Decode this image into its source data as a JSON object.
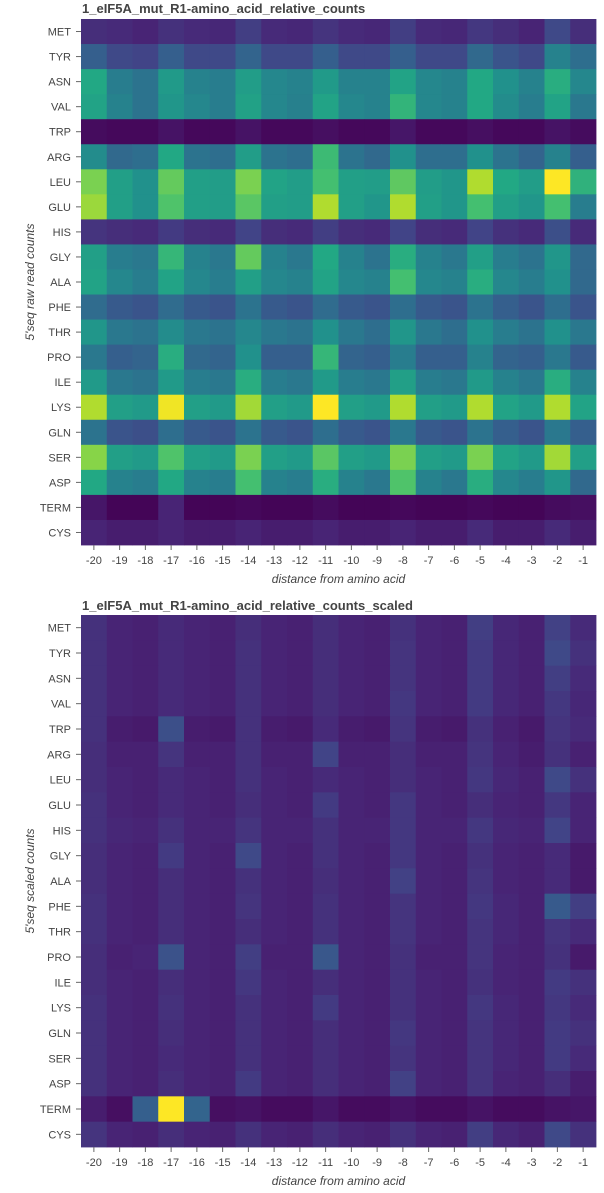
{
  "chart_data": [
    {
      "type": "heatmap",
      "title": "1_eIF5A_mut_R1-amino_acid_relative_counts",
      "xlabel": "distance from amino acid",
      "ylabel": "5'seq raw read counts",
      "x": [
        "-20",
        "-19",
        "-18",
        "-17",
        "-16",
        "-15",
        "-14",
        "-13",
        "-12",
        "-11",
        "-10",
        "-9",
        "-8",
        "-7",
        "-6",
        "-5",
        "-4",
        "-3",
        "-2",
        "-1"
      ],
      "y": [
        "MET",
        "TYR",
        "ASN",
        "VAL",
        "TRP",
        "ARG",
        "LEU",
        "GLU",
        "HIS",
        "GLY",
        "ALA",
        "PHE",
        "THR",
        "PRO",
        "ILE",
        "LYS",
        "GLN",
        "SER",
        "ASP",
        "TERM",
        "CYS"
      ],
      "colorscale": "viridis",
      "vrange": [
        0,
        1
      ],
      "values": [
        [
          0.13,
          0.12,
          0.1,
          0.14,
          0.12,
          0.11,
          0.18,
          0.12,
          0.11,
          0.15,
          0.12,
          0.11,
          0.18,
          0.12,
          0.11,
          0.16,
          0.13,
          0.1,
          0.22,
          0.13
        ],
        [
          0.3,
          0.22,
          0.2,
          0.3,
          0.22,
          0.22,
          0.32,
          0.22,
          0.22,
          0.3,
          0.22,
          0.22,
          0.3,
          0.22,
          0.22,
          0.34,
          0.26,
          0.22,
          0.44,
          0.36
        ],
        [
          0.6,
          0.42,
          0.38,
          0.54,
          0.44,
          0.42,
          0.55,
          0.46,
          0.44,
          0.54,
          0.44,
          0.44,
          0.58,
          0.46,
          0.44,
          0.6,
          0.5,
          0.44,
          0.62,
          0.46
        ],
        [
          0.58,
          0.44,
          0.38,
          0.52,
          0.46,
          0.42,
          0.57,
          0.46,
          0.43,
          0.58,
          0.46,
          0.44,
          0.65,
          0.46,
          0.44,
          0.6,
          0.48,
          0.42,
          0.58,
          0.4
        ],
        [
          0.03,
          0.02,
          0.02,
          0.05,
          0.02,
          0.02,
          0.05,
          0.02,
          0.02,
          0.04,
          0.02,
          0.02,
          0.06,
          0.02,
          0.02,
          0.04,
          0.02,
          0.02,
          0.05,
          0.03
        ],
        [
          0.48,
          0.34,
          0.36,
          0.6,
          0.38,
          0.36,
          0.55,
          0.38,
          0.36,
          0.68,
          0.38,
          0.34,
          0.5,
          0.36,
          0.36,
          0.5,
          0.38,
          0.32,
          0.44,
          0.3
        ],
        [
          0.8,
          0.56,
          0.5,
          0.76,
          0.56,
          0.55,
          0.8,
          0.58,
          0.55,
          0.7,
          0.56,
          0.55,
          0.75,
          0.55,
          0.52,
          0.88,
          0.6,
          0.55,
          1.0,
          0.64
        ],
        [
          0.85,
          0.56,
          0.5,
          0.72,
          0.56,
          0.55,
          0.74,
          0.56,
          0.55,
          0.88,
          0.56,
          0.52,
          0.88,
          0.56,
          0.52,
          0.7,
          0.56,
          0.52,
          0.7,
          0.42
        ],
        [
          0.15,
          0.13,
          0.12,
          0.17,
          0.13,
          0.12,
          0.2,
          0.13,
          0.12,
          0.18,
          0.13,
          0.12,
          0.2,
          0.13,
          0.12,
          0.2,
          0.14,
          0.12,
          0.24,
          0.12
        ],
        [
          0.56,
          0.42,
          0.4,
          0.66,
          0.44,
          0.4,
          0.76,
          0.44,
          0.4,
          0.6,
          0.44,
          0.38,
          0.62,
          0.44,
          0.4,
          0.56,
          0.42,
          0.38,
          0.52,
          0.34
        ],
        [
          0.58,
          0.46,
          0.42,
          0.58,
          0.46,
          0.42,
          0.56,
          0.46,
          0.44,
          0.58,
          0.46,
          0.44,
          0.7,
          0.46,
          0.44,
          0.62,
          0.46,
          0.42,
          0.5,
          0.34
        ],
        [
          0.35,
          0.28,
          0.26,
          0.35,
          0.28,
          0.26,
          0.38,
          0.28,
          0.26,
          0.35,
          0.28,
          0.26,
          0.36,
          0.28,
          0.26,
          0.38,
          0.3,
          0.26,
          0.36,
          0.26
        ],
        [
          0.52,
          0.4,
          0.38,
          0.48,
          0.4,
          0.38,
          0.46,
          0.4,
          0.38,
          0.5,
          0.4,
          0.36,
          0.52,
          0.4,
          0.36,
          0.5,
          0.42,
          0.38,
          0.5,
          0.4
        ],
        [
          0.4,
          0.3,
          0.32,
          0.62,
          0.34,
          0.32,
          0.5,
          0.3,
          0.3,
          0.66,
          0.32,
          0.3,
          0.42,
          0.3,
          0.3,
          0.44,
          0.32,
          0.3,
          0.4,
          0.28
        ],
        [
          0.54,
          0.4,
          0.38,
          0.54,
          0.42,
          0.4,
          0.62,
          0.42,
          0.4,
          0.54,
          0.42,
          0.4,
          0.56,
          0.42,
          0.4,
          0.54,
          0.44,
          0.4,
          0.62,
          0.44
        ],
        [
          0.88,
          0.56,
          0.54,
          0.98,
          0.56,
          0.54,
          0.86,
          0.56,
          0.54,
          1.0,
          0.56,
          0.54,
          0.88,
          0.56,
          0.54,
          0.88,
          0.58,
          0.54,
          0.88,
          0.58
        ],
        [
          0.38,
          0.26,
          0.24,
          0.36,
          0.28,
          0.26,
          0.38,
          0.28,
          0.26,
          0.36,
          0.28,
          0.26,
          0.4,
          0.28,
          0.26,
          0.38,
          0.3,
          0.26,
          0.4,
          0.3
        ],
        [
          0.82,
          0.56,
          0.54,
          0.72,
          0.56,
          0.54,
          0.8,
          0.56,
          0.54,
          0.74,
          0.56,
          0.54,
          0.8,
          0.56,
          0.54,
          0.8,
          0.58,
          0.54,
          0.86,
          0.56
        ],
        [
          0.6,
          0.44,
          0.42,
          0.6,
          0.44,
          0.42,
          0.7,
          0.44,
          0.42,
          0.62,
          0.44,
          0.4,
          0.72,
          0.44,
          0.4,
          0.62,
          0.46,
          0.42,
          0.52,
          0.34
        ],
        [
          0.06,
          0.01,
          0.01,
          0.1,
          0.01,
          0.01,
          0.02,
          0.01,
          0.01,
          0.03,
          0.01,
          0.01,
          0.02,
          0.01,
          0.01,
          0.02,
          0.01,
          0.01,
          0.03,
          0.04
        ],
        [
          0.1,
          0.08,
          0.08,
          0.1,
          0.08,
          0.08,
          0.1,
          0.08,
          0.08,
          0.1,
          0.08,
          0.08,
          0.1,
          0.08,
          0.08,
          0.12,
          0.08,
          0.08,
          0.12,
          0.08
        ]
      ]
    },
    {
      "type": "heatmap",
      "title": "1_eIF5A_mut_R1-amino_acid_relative_counts_scaled",
      "xlabel": "distance from amino acid",
      "ylabel": "5'seq scaled counts",
      "x": [
        "-20",
        "-19",
        "-18",
        "-17",
        "-16",
        "-15",
        "-14",
        "-13",
        "-12",
        "-11",
        "-10",
        "-9",
        "-8",
        "-7",
        "-6",
        "-5",
        "-4",
        "-3",
        "-2",
        "-1"
      ],
      "y": [
        "MET",
        "TYR",
        "ASN",
        "VAL",
        "TRP",
        "ARG",
        "LEU",
        "GLU",
        "HIS",
        "GLY",
        "ALA",
        "PHE",
        "THR",
        "PRO",
        "ILE",
        "LYS",
        "GLN",
        "SER",
        "ASP",
        "TERM",
        "CYS"
      ],
      "colorscale": "viridis",
      "vrange": [
        0,
        1
      ],
      "values": [
        [
          0.14,
          0.1,
          0.09,
          0.12,
          0.1,
          0.09,
          0.13,
          0.1,
          0.09,
          0.13,
          0.1,
          0.09,
          0.14,
          0.1,
          0.09,
          0.18,
          0.11,
          0.09,
          0.19,
          0.12
        ],
        [
          0.14,
          0.1,
          0.09,
          0.12,
          0.1,
          0.09,
          0.14,
          0.1,
          0.09,
          0.13,
          0.1,
          0.09,
          0.15,
          0.1,
          0.09,
          0.17,
          0.11,
          0.09,
          0.22,
          0.14
        ],
        [
          0.14,
          0.1,
          0.09,
          0.12,
          0.1,
          0.09,
          0.14,
          0.1,
          0.09,
          0.13,
          0.1,
          0.09,
          0.15,
          0.1,
          0.09,
          0.17,
          0.11,
          0.09,
          0.18,
          0.12
        ],
        [
          0.14,
          0.1,
          0.09,
          0.12,
          0.1,
          0.09,
          0.14,
          0.1,
          0.09,
          0.13,
          0.1,
          0.09,
          0.16,
          0.1,
          0.09,
          0.17,
          0.11,
          0.09,
          0.16,
          0.11
        ],
        [
          0.14,
          0.08,
          0.07,
          0.24,
          0.08,
          0.07,
          0.14,
          0.08,
          0.07,
          0.12,
          0.08,
          0.07,
          0.15,
          0.08,
          0.07,
          0.14,
          0.09,
          0.07,
          0.15,
          0.12
        ],
        [
          0.13,
          0.09,
          0.09,
          0.15,
          0.09,
          0.09,
          0.14,
          0.09,
          0.09,
          0.2,
          0.09,
          0.09,
          0.13,
          0.09,
          0.09,
          0.15,
          0.1,
          0.08,
          0.14,
          0.09
        ],
        [
          0.13,
          0.1,
          0.09,
          0.12,
          0.1,
          0.09,
          0.14,
          0.1,
          0.09,
          0.12,
          0.1,
          0.09,
          0.13,
          0.1,
          0.09,
          0.16,
          0.11,
          0.09,
          0.22,
          0.14
        ],
        [
          0.14,
          0.1,
          0.09,
          0.12,
          0.1,
          0.09,
          0.13,
          0.1,
          0.09,
          0.17,
          0.1,
          0.09,
          0.16,
          0.1,
          0.09,
          0.13,
          0.1,
          0.09,
          0.16,
          0.1
        ],
        [
          0.14,
          0.11,
          0.1,
          0.14,
          0.1,
          0.1,
          0.15,
          0.1,
          0.1,
          0.14,
          0.1,
          0.1,
          0.16,
          0.1,
          0.1,
          0.16,
          0.11,
          0.1,
          0.2,
          0.1
        ],
        [
          0.13,
          0.1,
          0.09,
          0.17,
          0.1,
          0.09,
          0.22,
          0.1,
          0.09,
          0.14,
          0.1,
          0.09,
          0.16,
          0.1,
          0.09,
          0.14,
          0.1,
          0.09,
          0.12,
          0.07
        ],
        [
          0.13,
          0.1,
          0.09,
          0.13,
          0.1,
          0.09,
          0.14,
          0.1,
          0.09,
          0.13,
          0.1,
          0.09,
          0.19,
          0.1,
          0.09,
          0.15,
          0.1,
          0.09,
          0.12,
          0.07
        ],
        [
          0.14,
          0.1,
          0.09,
          0.13,
          0.1,
          0.09,
          0.15,
          0.1,
          0.09,
          0.14,
          0.1,
          0.09,
          0.15,
          0.1,
          0.09,
          0.16,
          0.11,
          0.09,
          0.28,
          0.18
        ],
        [
          0.14,
          0.1,
          0.09,
          0.13,
          0.1,
          0.09,
          0.13,
          0.1,
          0.09,
          0.14,
          0.1,
          0.09,
          0.15,
          0.1,
          0.09,
          0.15,
          0.11,
          0.09,
          0.15,
          0.12
        ],
        [
          0.13,
          0.09,
          0.1,
          0.25,
          0.1,
          0.09,
          0.18,
          0.09,
          0.09,
          0.27,
          0.1,
          0.09,
          0.14,
          0.09,
          0.09,
          0.15,
          0.1,
          0.09,
          0.14,
          0.07
        ],
        [
          0.13,
          0.1,
          0.09,
          0.13,
          0.1,
          0.09,
          0.16,
          0.1,
          0.09,
          0.13,
          0.1,
          0.09,
          0.14,
          0.1,
          0.09,
          0.14,
          0.1,
          0.09,
          0.17,
          0.14
        ],
        [
          0.14,
          0.1,
          0.09,
          0.14,
          0.1,
          0.09,
          0.14,
          0.1,
          0.09,
          0.17,
          0.1,
          0.09,
          0.14,
          0.1,
          0.09,
          0.16,
          0.11,
          0.09,
          0.16,
          0.12
        ],
        [
          0.14,
          0.1,
          0.09,
          0.13,
          0.1,
          0.09,
          0.14,
          0.1,
          0.09,
          0.13,
          0.1,
          0.09,
          0.16,
          0.1,
          0.09,
          0.15,
          0.11,
          0.09,
          0.17,
          0.14
        ],
        [
          0.14,
          0.1,
          0.09,
          0.12,
          0.1,
          0.09,
          0.14,
          0.1,
          0.09,
          0.13,
          0.1,
          0.09,
          0.15,
          0.1,
          0.09,
          0.15,
          0.11,
          0.09,
          0.17,
          0.12
        ],
        [
          0.14,
          0.1,
          0.09,
          0.13,
          0.1,
          0.09,
          0.17,
          0.1,
          0.09,
          0.13,
          0.1,
          0.09,
          0.19,
          0.1,
          0.09,
          0.15,
          0.1,
          0.09,
          0.13,
          0.08
        ],
        [
          0.08,
          0.04,
          0.3,
          1.0,
          0.32,
          0.04,
          0.05,
          0.03,
          0.03,
          0.06,
          0.03,
          0.03,
          0.05,
          0.03,
          0.03,
          0.05,
          0.03,
          0.03,
          0.05,
          0.06
        ],
        [
          0.15,
          0.1,
          0.09,
          0.13,
          0.1,
          0.09,
          0.14,
          0.1,
          0.09,
          0.13,
          0.1,
          0.09,
          0.14,
          0.1,
          0.09,
          0.18,
          0.11,
          0.09,
          0.22,
          0.14
        ]
      ]
    }
  ]
}
